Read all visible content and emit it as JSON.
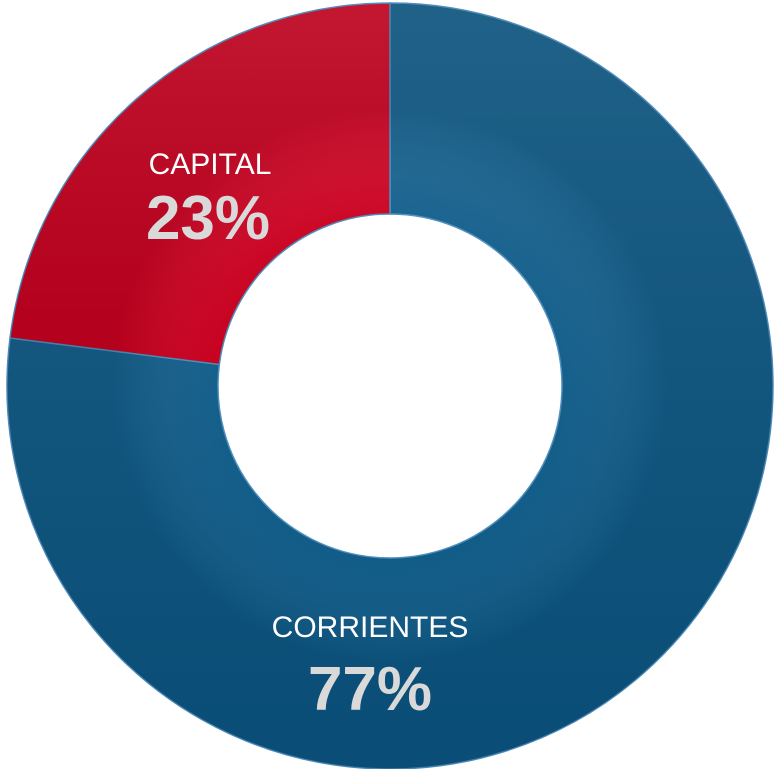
{
  "chart_data": {
    "type": "pie",
    "donut": true,
    "title": "",
    "categories": [
      "CORRIENTES",
      "CAPITAL"
    ],
    "values": [
      77,
      23
    ],
    "value_labels": [
      "77%",
      "23%"
    ],
    "colors": [
      "#0b5c8c",
      "#d40021"
    ],
    "label_color": "#ffffff",
    "value_label_color": "#d9d9d9",
    "start_angle_deg": 0,
    "direction": "clockwise",
    "legend": "none"
  }
}
